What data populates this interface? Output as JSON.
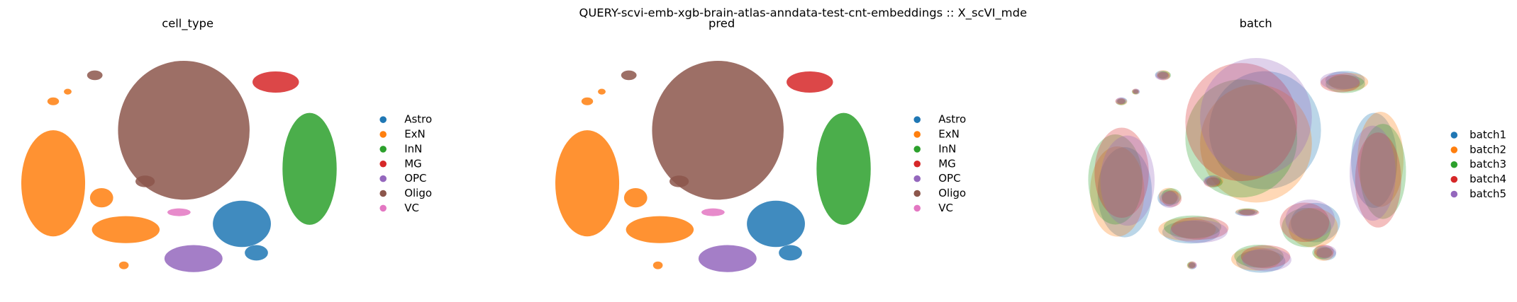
{
  "title": "QUERY-scvi-emb-xgb-brain-atlas-anndata-test-cnt-embeddings :: X_scVI_mde",
  "chart_data": [
    {
      "type": "scatter",
      "title": "cell_type",
      "series": [
        {
          "name": "Astro",
          "color": "#1f77b4"
        },
        {
          "name": "ExN",
          "color": "#ff7f0e"
        },
        {
          "name": "InN",
          "color": "#2ca02c"
        },
        {
          "name": "MG",
          "color": "#d62728"
        },
        {
          "name": "OPC",
          "color": "#9467bd"
        },
        {
          "name": "Oligo",
          "color": "#8c564b"
        },
        {
          "name": "VC",
          "color": "#e377c2"
        }
      ]
    },
    {
      "type": "scatter",
      "title": "pred",
      "series": [
        {
          "name": "Astro",
          "color": "#1f77b4"
        },
        {
          "name": "ExN",
          "color": "#ff7f0e"
        },
        {
          "name": "InN",
          "color": "#2ca02c"
        },
        {
          "name": "MG",
          "color": "#d62728"
        },
        {
          "name": "OPC",
          "color": "#9467bd"
        },
        {
          "name": "Oligo",
          "color": "#8c564b"
        },
        {
          "name": "VC",
          "color": "#e377c2"
        }
      ]
    },
    {
      "type": "scatter",
      "title": "batch",
      "series": [
        {
          "name": "batch1",
          "color": "#1f77b4"
        },
        {
          "name": "batch2",
          "color": "#ff7f0e"
        },
        {
          "name": "batch3",
          "color": "#2ca02c"
        },
        {
          "name": "batch4",
          "color": "#d62728"
        },
        {
          "name": "batch5",
          "color": "#9467bd"
        }
      ]
    }
  ]
}
